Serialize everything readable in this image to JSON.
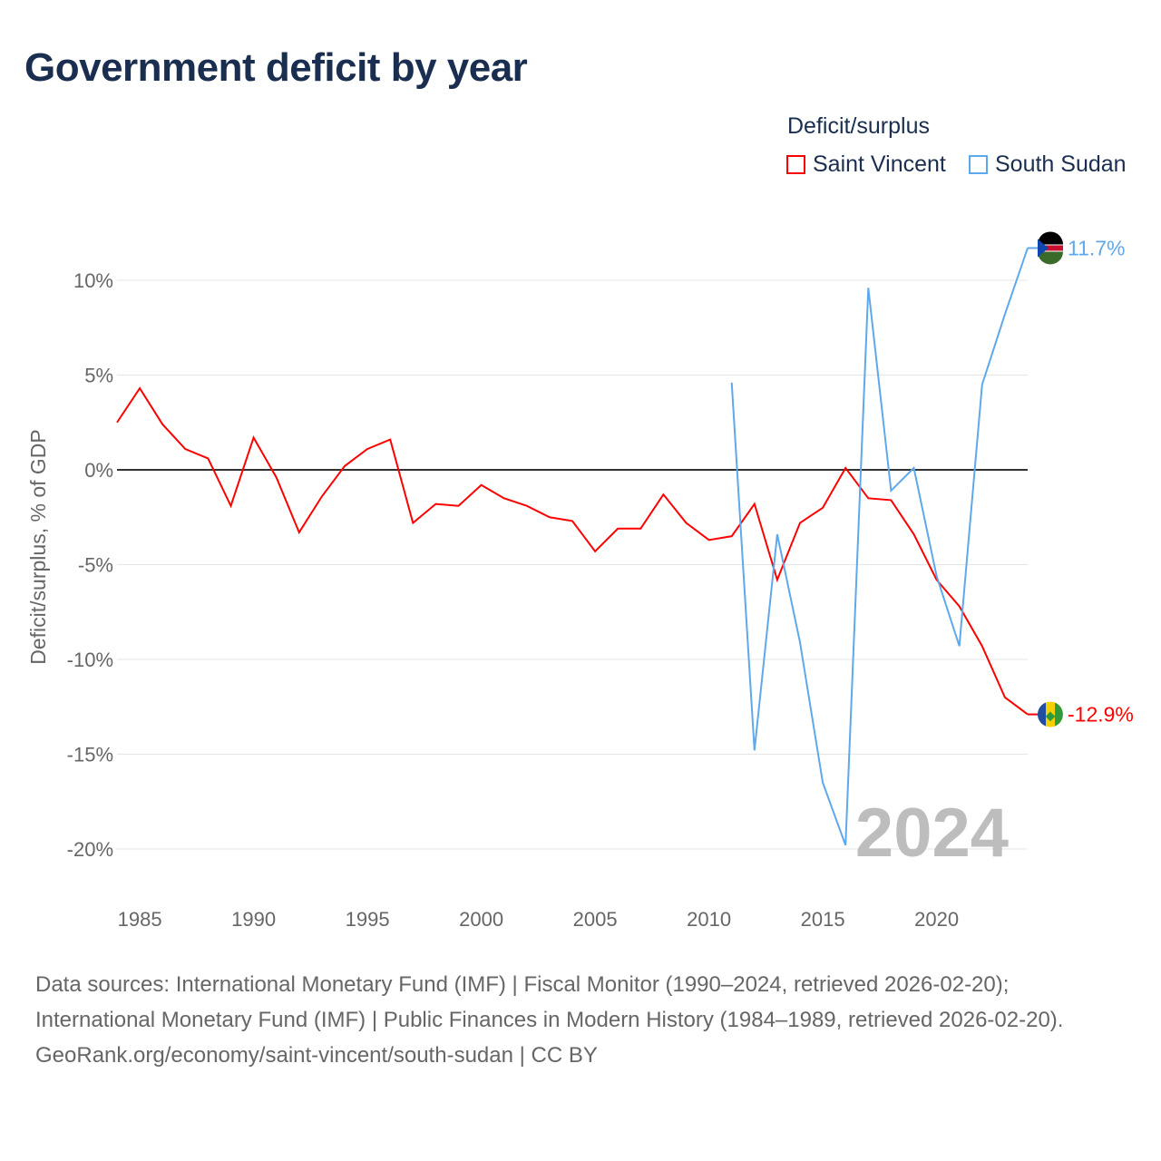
{
  "title": "Government deficit by year",
  "legend": {
    "title": "Deficit/surplus",
    "items": [
      "Saint Vincent",
      "South Sudan"
    ]
  },
  "source": {
    "line1": "Data sources: International Monetary Fund (IMF) | Fiscal Monitor (1990–2024, retrieved 2026-02-20); International Monetary Fund (IMF) | Public Finances in Modern History (1984–1989, retrieved 2026-02-20).",
    "line2": "GeoRank.org/economy/saint-vincent/south-sudan | CC BY"
  },
  "chart_data": {
    "type": "line",
    "title": "Government deficit by year",
    "ylabel": "Deficit/surplus, % of GDP",
    "xlabel": "",
    "xlim": [
      1984,
      2024
    ],
    "ylim": [
      -22,
      13
    ],
    "xticks": [
      1985,
      1990,
      1995,
      2000,
      2005,
      2010,
      2015,
      2020
    ],
    "yticks": [
      10,
      5,
      0,
      -5,
      -10,
      -15,
      -20
    ],
    "ytick_labels": [
      "10%",
      "5%",
      "0%",
      "-5%",
      "-10%",
      "-15%",
      "-20%"
    ],
    "year_label": "2024",
    "series": [
      {
        "name": "Saint Vincent",
        "color": "#ff0000",
        "end_label": "-12.9%",
        "x": [
          1984,
          1985,
          1986,
          1987,
          1988,
          1989,
          1990,
          1991,
          1992,
          1993,
          1994,
          1995,
          1996,
          1997,
          1998,
          1999,
          2000,
          2001,
          2002,
          2003,
          2004,
          2005,
          2006,
          2007,
          2008,
          2009,
          2010,
          2011,
          2012,
          2013,
          2014,
          2015,
          2016,
          2017,
          2018,
          2019,
          2020,
          2021,
          2022,
          2023,
          2024
        ],
        "values": [
          2.5,
          4.3,
          2.4,
          1.1,
          0.6,
          -1.9,
          1.7,
          -0.4,
          -3.3,
          -1.4,
          0.2,
          1.1,
          1.6,
          -2.8,
          -1.8,
          -1.9,
          -0.8,
          -1.5,
          -1.9,
          -2.5,
          -2.7,
          -4.3,
          -3.1,
          -3.1,
          -1.3,
          -2.8,
          -3.7,
          -3.5,
          -1.8,
          -5.8,
          -2.8,
          -2.0,
          0.1,
          -1.5,
          -1.6,
          -3.4,
          -5.8,
          -7.2,
          -9.3,
          -12.0,
          -12.9
        ]
      },
      {
        "name": "South Sudan",
        "color": "#5ea8ec",
        "end_label": "11.7%",
        "x": [
          2011,
          2012,
          2013,
          2014,
          2015,
          2016,
          2017,
          2018,
          2019,
          2020,
          2021,
          2022,
          2023,
          2024
        ],
        "values": [
          4.6,
          -14.8,
          -3.4,
          -9.1,
          -16.5,
          -19.8,
          9.6,
          -1.1,
          0.1,
          -5.6,
          -9.3,
          4.5,
          8.2,
          11.7
        ]
      }
    ]
  }
}
